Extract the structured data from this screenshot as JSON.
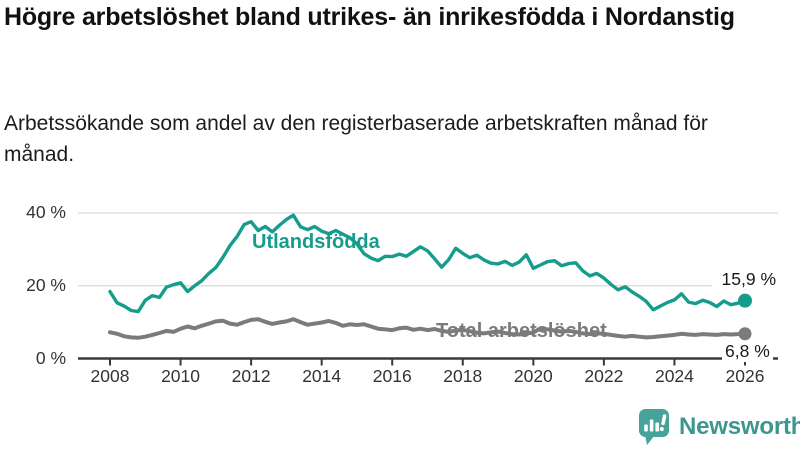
{
  "title": "Högre arbetslöshet bland utrikes- än inrikesfödda i Nordanstig",
  "subtitle": "Arbetssökande som andel av den registerbaserade arbetskraften månad för månad.",
  "colors": {
    "accent_teal": "#169c8c",
    "series_gray": "#7b7b7b",
    "axis": "#3a3a3a",
    "grid": "#d9d9d9",
    "text": "#1a1a1a",
    "logo_teal": "#46a39a",
    "logo_text_teal": "#3d968f"
  },
  "chart_data": {
    "type": "line",
    "title": "Högre arbetslöshet bland utrikes- än inrikesfödda i Nordanstig",
    "subtitle": "Arbetssökande som andel av den registerbaserade arbetskraften månad för månad.",
    "unit": "%",
    "x_start": 2008.0,
    "x_step_years": 0.2,
    "xlim": [
      2008,
      2026.1
    ],
    "ylim": [
      0,
      40
    ],
    "grid": "horizontal",
    "legend_position": "inline-labels",
    "x_ticks": [
      "2008",
      "2010",
      "2012",
      "2014",
      "2016",
      "2018",
      "2020",
      "2022",
      "2024",
      "2026"
    ],
    "y_ticks": [
      {
        "label": "0 %",
        "value": 0
      },
      {
        "label": "20 %",
        "value": 20
      },
      {
        "label": "40 %",
        "value": 40
      }
    ],
    "series": [
      {
        "name": "Utlandsfödda",
        "color": "#169c8c",
        "end_label": "15,9 %",
        "end_value": 15.9,
        "values": [
          18.4,
          15.3,
          14.4,
          13.2,
          12.9,
          16.0,
          17.3,
          16.8,
          19.6,
          20.3,
          20.8,
          18.4,
          20.0,
          21.4,
          23.4,
          25.0,
          27.8,
          31.0,
          33.5,
          36.8,
          37.6,
          35.2,
          36.3,
          34.8,
          36.6,
          38.2,
          39.4,
          36.2,
          35.4,
          36.3,
          35.0,
          34.3,
          35.2,
          34.2,
          33.2,
          31.5,
          28.8,
          27.6,
          26.9,
          28.1,
          28.0,
          28.7,
          28.1,
          29.4,
          30.7,
          29.6,
          27.4,
          25.1,
          27.2,
          30.3,
          28.9,
          27.7,
          28.4,
          27.1,
          26.2,
          26.0,
          26.7,
          25.6,
          26.5,
          28.5,
          24.8,
          25.7,
          26.6,
          26.9,
          25.5,
          26.1,
          26.3,
          24.1,
          22.7,
          23.4,
          22.1,
          20.4,
          18.9,
          19.7,
          18.3,
          17.1,
          15.7,
          13.4,
          14.4,
          15.4,
          16.1,
          17.8,
          15.5,
          15.1,
          16.0,
          15.4,
          14.3,
          15.8,
          14.8,
          15.2,
          15.9
        ]
      },
      {
        "name": "Total arbetslöshet",
        "color": "#7b7b7b",
        "end_label": "6,8 %",
        "end_value": 6.8,
        "values": [
          7.2,
          6.8,
          6.1,
          5.8,
          5.7,
          6.0,
          6.5,
          7.0,
          7.6,
          7.3,
          8.2,
          8.8,
          8.3,
          9.0,
          9.6,
          10.2,
          10.4,
          9.6,
          9.3,
          10.0,
          10.6,
          10.8,
          10.1,
          9.5,
          9.9,
          10.2,
          10.8,
          10.0,
          9.3,
          9.6,
          9.9,
          10.3,
          9.8,
          9.0,
          9.4,
          9.2,
          9.4,
          8.8,
          8.2,
          8.0,
          7.8,
          8.3,
          8.5,
          7.9,
          8.2,
          7.8,
          8.1,
          7.6,
          7.3,
          7.7,
          7.9,
          7.5,
          7.1,
          6.9,
          7.2,
          7.4,
          7.0,
          6.7,
          6.6,
          6.9,
          7.1,
          8.3,
          8.0,
          7.7,
          7.4,
          7.6,
          7.3,
          6.9,
          6.7,
          6.9,
          6.8,
          6.5,
          6.2,
          6.0,
          6.2,
          6.0,
          5.8,
          5.9,
          6.1,
          6.3,
          6.5,
          6.8,
          6.6,
          6.5,
          6.7,
          6.6,
          6.5,
          6.7,
          6.6,
          6.7,
          6.8
        ]
      }
    ]
  },
  "logo": {
    "text": "Newsworthy"
  }
}
